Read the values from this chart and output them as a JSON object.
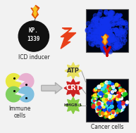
{
  "background_color": "#f2f2f2",
  "bomb_color": "#111111",
  "bomb_text": "KP.\n1339",
  "bomb_text_color": "#ffffff",
  "bomb_text_size": 5.5,
  "label_icd": "ICD inducer",
  "label_immune": "Immune\ncells",
  "label_cancer": "Cancer cells",
  "label_atp": "ATP",
  "label_crt": "CRT",
  "label_hmgb": "HMGB-1",
  "lightning_color": "#e8401a",
  "arrow_color": "#cc0000",
  "pacman_colors": [
    "#e8e840",
    "#e8b0d0",
    "#80d060",
    "#80c0e0"
  ],
  "starburst_atp_color": "#e8e060",
  "starburst_atp_text_color": "#333333",
  "starburst_crt_color": "#cc2222",
  "starburst_crt_text_color": "#ffffff",
  "starburst_hmgb_color": "#88cc44",
  "starburst_hmgb_text_color": "#333333",
  "box_outline_color": "#555555",
  "fig_width": 1.93,
  "fig_height": 1.89,
  "dpi": 100
}
